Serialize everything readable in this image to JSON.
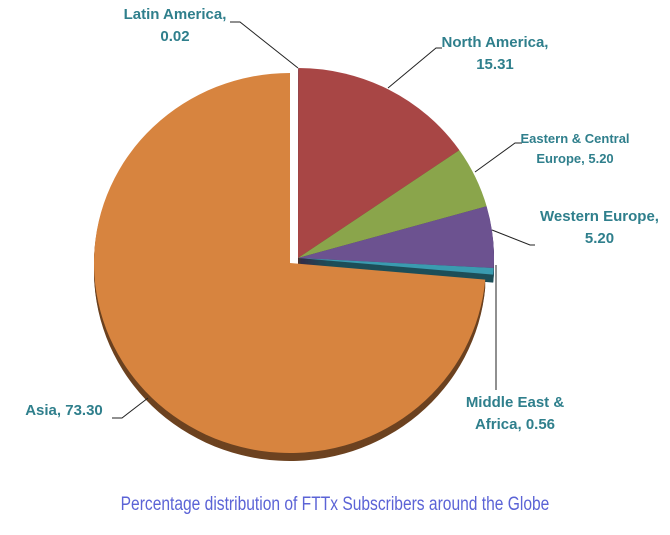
{
  "chart_data": {
    "type": "pie",
    "title": "Percentage distribution of FTTx Subscribers around the Globe",
    "slices": [
      {
        "label": "Latin America",
        "value": 0.02,
        "display": "0.02",
        "color": "#4a7fbf"
      },
      {
        "label": "North America",
        "value": 15.31,
        "display": "15.31",
        "color": "#a84645"
      },
      {
        "label": "Eastern & Central Europe",
        "value": 5.2,
        "display": "5.20",
        "color": "#8aa54b"
      },
      {
        "label": "Western Europe",
        "value": 5.2,
        "display": "5.20",
        "color": "#6c5290"
      },
      {
        "label": "Middle East & Africa",
        "value": 0.56,
        "display": "0.56",
        "color": "#3a9bb0"
      },
      {
        "label": "Asia",
        "value": 73.3,
        "display": "73.30",
        "color": "#d7843f"
      }
    ],
    "label_text": {
      "latin": [
        "Latin America,",
        "0.02"
      ],
      "north": [
        "North America,",
        "15.31"
      ],
      "eastern": [
        "Eastern & Central",
        "Europe, 5.20"
      ],
      "western": [
        "Western Europe,",
        "5.20"
      ],
      "mea": [
        "Middle East &",
        "Africa, 0.56"
      ],
      "asia": "Asia, 73.30"
    }
  }
}
